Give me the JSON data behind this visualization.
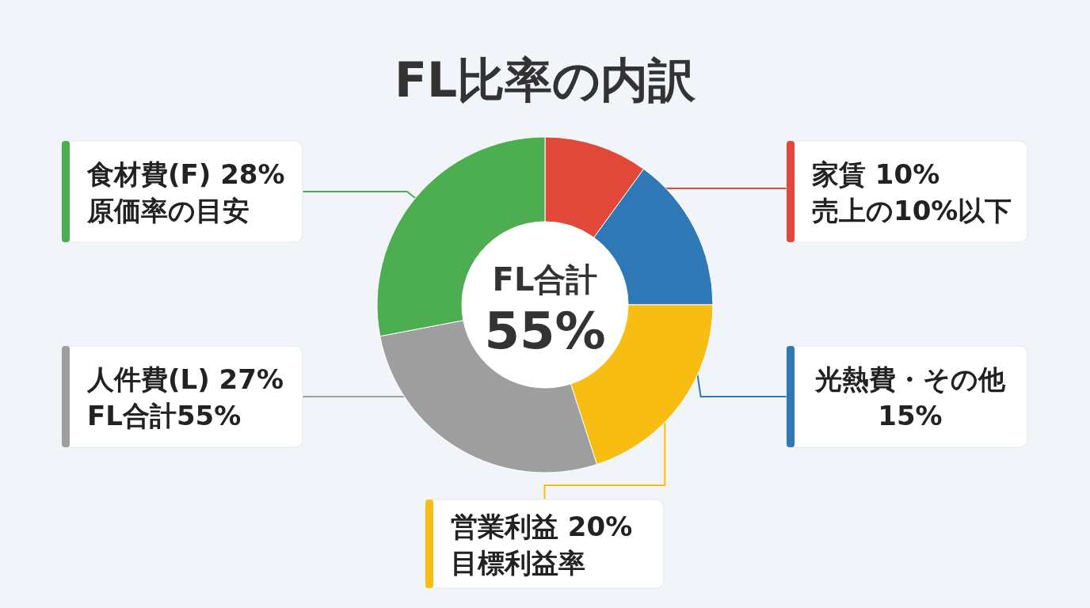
{
  "chart_data": {
    "type": "donut",
    "title": "FL比率の内訳",
    "categories": [
      "家賃",
      "光熱費・その他",
      "営業利益",
      "人件費(L)",
      "食材費(F)"
    ],
    "values": [
      10,
      15,
      20,
      27,
      28
    ],
    "colors": [
      "#e2483a",
      "#2f78b6",
      "#f8bd12",
      "#9e9e9e",
      "#4cae50"
    ],
    "value_labels": [
      "10%",
      "15%",
      "20%",
      "27%",
      "28%"
    ],
    "annotations": [
      "売上の10%以下",
      "目標利益率",
      "FL合計55%",
      "原価率の目安",
      "FL合計",
      "55%"
    ]
  }
}
